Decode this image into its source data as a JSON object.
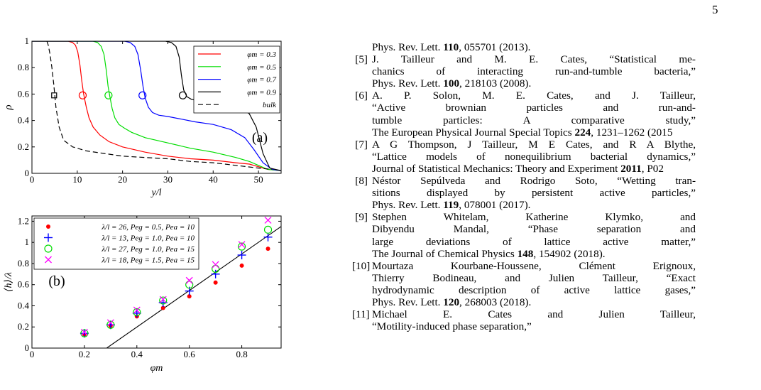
{
  "page_number": "5",
  "chart_data": [
    {
      "type": "line",
      "panel_label": "(a)",
      "xlabel": "y/l",
      "ylabel": "ρ",
      "xlim": [
        0,
        55
      ],
      "ylim": [
        0,
        1
      ],
      "xticks": [
        "0",
        "10",
        "20",
        "30",
        "40",
        "50"
      ],
      "yticks": [
        "0",
        "0.2",
        "0.4",
        "0.6",
        "0.8",
        "1"
      ],
      "legend_position": "top-right",
      "series": [
        {
          "name": "φm = 0.3",
          "color": "#ff0000",
          "x": [
            0,
            8,
            9,
            9.6,
            10.1,
            10.6,
            11.0,
            11.4,
            12.0,
            12.6,
            13.5,
            15,
            17,
            20,
            25,
            30,
            35,
            40,
            45,
            48,
            50,
            52,
            55
          ],
          "y": [
            1,
            1,
            0.99,
            0.97,
            0.92,
            0.82,
            0.7,
            0.6,
            0.5,
            0.42,
            0.35,
            0.29,
            0.24,
            0.2,
            0.16,
            0.13,
            0.11,
            0.1,
            0.08,
            0.07,
            0.05,
            0.03,
            0.02
          ],
          "marker": {
            "x": 11.2,
            "y": 0.59,
            "shape": "circle"
          }
        },
        {
          "name": "φm = 0.5",
          "color": "#00dd00",
          "x": [
            0,
            13.5,
            14.5,
            15.3,
            15.9,
            16.4,
            16.8,
            17.2,
            17.7,
            18.3,
            19.2,
            20.5,
            22,
            25,
            30,
            35,
            40,
            45,
            48,
            50,
            52,
            55
          ],
          "y": [
            1,
            1,
            0.99,
            0.96,
            0.9,
            0.78,
            0.66,
            0.58,
            0.49,
            0.42,
            0.37,
            0.34,
            0.31,
            0.27,
            0.23,
            0.19,
            0.16,
            0.12,
            0.09,
            0.06,
            0.03,
            0.02
          ],
          "marker": {
            "x": 16.9,
            "y": 0.59,
            "shape": "circle"
          }
        },
        {
          "name": "φm = 0.7",
          "color": "#0000ff",
          "x": [
            0,
            20.5,
            21.7,
            22.7,
            23.4,
            24.0,
            24.5,
            25.0,
            25.7,
            26.6,
            28,
            30,
            33,
            36,
            40,
            44,
            47,
            49,
            51,
            53,
            55
          ],
          "y": [
            1,
            1,
            0.99,
            0.96,
            0.9,
            0.78,
            0.66,
            0.57,
            0.5,
            0.46,
            0.44,
            0.43,
            0.41,
            0.39,
            0.37,
            0.33,
            0.27,
            0.18,
            0.08,
            0.03,
            0.02
          ],
          "marker": {
            "x": 24.4,
            "y": 0.59,
            "shape": "circle"
          }
        },
        {
          "name": "φm = 0.9",
          "color": "#000000",
          "x": [
            0,
            29.5,
            30.8,
            31.8,
            32.5,
            33.0,
            33.5,
            34.2,
            35.2,
            36.5,
            38,
            40,
            43,
            46,
            48,
            49.5,
            51,
            52.5,
            55
          ],
          "y": [
            1,
            1,
            0.99,
            0.96,
            0.88,
            0.74,
            0.63,
            0.58,
            0.56,
            0.55,
            0.55,
            0.54,
            0.53,
            0.5,
            0.45,
            0.35,
            0.15,
            0.04,
            0.02
          ],
          "marker": {
            "x": 33.3,
            "y": 0.59,
            "shape": "circle"
          }
        },
        {
          "name": "bulk",
          "color": "#000000",
          "dashed": true,
          "x": [
            3.3,
            3.6,
            4.0,
            4.4,
            4.8,
            5.3,
            6,
            7,
            9,
            12,
            16,
            20,
            25,
            30,
            35,
            40,
            45,
            50,
            53
          ],
          "y": [
            1,
            0.97,
            0.9,
            0.8,
            0.68,
            0.5,
            0.35,
            0.25,
            0.2,
            0.17,
            0.15,
            0.13,
            0.12,
            0.11,
            0.09,
            0.08,
            0.06,
            0.04,
            0.03
          ],
          "marker": {
            "x": 4.9,
            "y": 0.59,
            "shape": "square"
          }
        }
      ]
    },
    {
      "type": "scatter",
      "panel_label": "(b)",
      "xlabel": "φm",
      "ylabel": "⟨h⟩/λ",
      "xlim": [
        0,
        0.95
      ],
      "ylim": [
        0,
        1.25
      ],
      "xticks": [
        "0",
        "0.2",
        "0.4",
        "0.6",
        "0.8"
      ],
      "yticks": [
        "0",
        "0.2",
        "0.4",
        "0.6",
        "0.8",
        "1",
        "1.2"
      ],
      "legend_position": "top-left",
      "x": [
        0.2,
        0.3,
        0.4,
        0.5,
        0.6,
        0.7,
        0.8,
        0.9
      ],
      "series": [
        {
          "name": "λ/l = 26, Peg = 0.5, Pea = 10",
          "color": "#ff0000",
          "marker": "dot",
          "values": [
            0.13,
            0.21,
            0.3,
            0.38,
            0.49,
            0.62,
            0.78,
            0.94
          ]
        },
        {
          "name": "λ/l = 13, Peg = 1.0, Pea = 10",
          "color": "#0000ff",
          "marker": "plus",
          "values": [
            0.14,
            0.22,
            0.33,
            0.43,
            0.54,
            0.7,
            0.88,
            1.05
          ]
        },
        {
          "name": "λ/l = 27, Peg = 1.0, Pea = 15",
          "color": "#00dd00",
          "marker": "circle",
          "values": [
            0.14,
            0.22,
            0.34,
            0.45,
            0.6,
            0.75,
            0.96,
            1.12
          ]
        },
        {
          "name": "λ/l = 18, Peg = 1.5, Pea = 15",
          "color": "#ff00ff",
          "marker": "cross",
          "values": [
            0.15,
            0.24,
            0.36,
            0.46,
            0.64,
            0.79,
            0.98,
            1.21
          ]
        }
      ],
      "fit_line": {
        "color": "#000000",
        "x": [
          0.285,
          0.95
        ],
        "y": [
          0,
          1.15
        ]
      }
    }
  ],
  "references": [
    {
      "number": "",
      "lines": [
        [
          {
            "t": "Phys. Rev. Lett. "
          },
          {
            "t": "110",
            "b": true
          },
          {
            "t": ", 055701 (2013)."
          }
        ]
      ]
    },
    {
      "number": "[5]",
      "lines": [
        [
          {
            "t": "J. Tailleur and M. E. Cates, “Statistical me-"
          }
        ],
        [
          {
            "t": "chanics of interacting run-and-tumble bacteria,”"
          }
        ],
        [
          {
            "t": "Phys. Rev. Lett. "
          },
          {
            "t": "100",
            "b": true
          },
          {
            "t": ", 218103 (2008)."
          }
        ]
      ]
    },
    {
      "number": "[6]",
      "lines": [
        [
          {
            "t": "A. P. Solon, M. E. Cates, and J. Tailleur,"
          }
        ],
        [
          {
            "t": "“Active brownian particles and run-and-"
          }
        ],
        [
          {
            "t": "tumble particles: A comparative study,”"
          }
        ],
        [
          {
            "t": "The European Physical Journal Special Topics "
          },
          {
            "t": "224",
            "b": true
          },
          {
            "t": ", 1231–1262 (2015"
          }
        ]
      ]
    },
    {
      "number": "[7]",
      "lines": [
        [
          {
            "t": "A G Thompson, J Tailleur, M E Cates, and R A Blythe,"
          }
        ],
        [
          {
            "t": "“Lattice models of nonequilibrium bacterial dynamics,”"
          }
        ],
        [
          {
            "t": "Journal of Statistical Mechanics: Theory and Experiment "
          },
          {
            "t": "2011",
            "b": true
          },
          {
            "t": ", P02"
          }
        ]
      ]
    },
    {
      "number": "[8]",
      "lines": [
        [
          {
            "t": "Néstor Sepúlveda and Rodrigo Soto, “Wetting tran-"
          }
        ],
        [
          {
            "t": "sitions displayed by persistent active particles,”"
          }
        ],
        [
          {
            "t": "Phys. Rev. Lett. "
          },
          {
            "t": "119",
            "b": true
          },
          {
            "t": ", 078001 (2017)."
          }
        ]
      ]
    },
    {
      "number": "[9]",
      "lines": [
        [
          {
            "t": "Stephen Whitelam, Katherine Klymko, and"
          }
        ],
        [
          {
            "t": "Dibyendu Mandal, “Phase separation and"
          }
        ],
        [
          {
            "t": "large deviations of lattice active matter,”"
          }
        ],
        [
          {
            "t": "The Journal of Chemical Physics "
          },
          {
            "t": "148",
            "b": true
          },
          {
            "t": ", 154902 (2018)."
          }
        ]
      ]
    },
    {
      "number": "[10]",
      "lines": [
        [
          {
            "t": "Mourtaza Kourbane-Houssene, Clément Erignoux,"
          }
        ],
        [
          {
            "t": "Thierry Bodineau, and Julien Tailleur, “Exact"
          }
        ],
        [
          {
            "t": "hydrodynamic description of active lattice gases,”"
          }
        ],
        [
          {
            "t": "Phys. Rev. Lett. "
          },
          {
            "t": "120",
            "b": true
          },
          {
            "t": ", 268003 (2018)."
          }
        ]
      ]
    },
    {
      "number": "[11]",
      "lines": [
        [
          {
            "t": "Michael E. Cates and Julien Tailleur,"
          }
        ],
        [
          {
            "t": "“Motility-induced phase separation,”"
          }
        ]
      ]
    }
  ]
}
